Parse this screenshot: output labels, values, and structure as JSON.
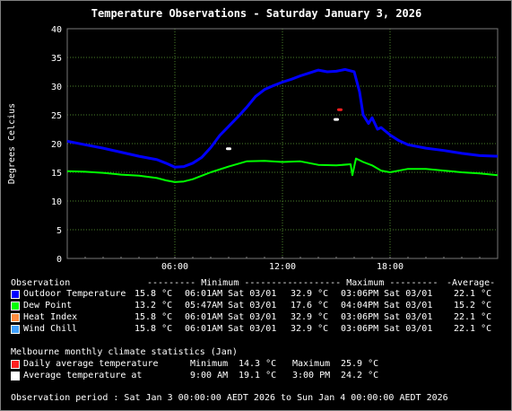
{
  "title": "Temperature Observations - Saturday January 3, 2026",
  "chart_data": {
    "type": "line",
    "title": "Temperature Observations - Saturday January 3, 2026",
    "xlabel": "",
    "ylabel": "Degrees Celcius",
    "xlim": [
      "00:00",
      "24:00"
    ],
    "ylim": [
      0,
      40
    ],
    "yticks": [
      0,
      5,
      10,
      15,
      20,
      25,
      30,
      35,
      40
    ],
    "xticks": [
      "06:00",
      "12:00",
      "18:00"
    ],
    "grid": true,
    "series": [
      {
        "name": "Outdoor Temperature",
        "color": "#0000ff",
        "x": [
          0,
          1,
          2,
          3,
          4,
          5,
          5.5,
          6,
          6.5,
          7,
          7.5,
          8,
          8.5,
          9,
          9.5,
          10,
          10.5,
          11,
          11.5,
          12,
          12.5,
          13,
          13.5,
          14,
          14.5,
          15,
          15.5,
          16.0,
          16.3,
          16.5,
          16.8,
          17,
          17.3,
          17.5,
          18,
          18.5,
          19,
          20,
          21,
          22,
          23,
          24
        ],
        "values": [
          20.4,
          19.8,
          19.2,
          18.5,
          17.8,
          17.2,
          16.6,
          15.9,
          16.0,
          16.6,
          17.6,
          19.3,
          21.4,
          23.0,
          24.6,
          26.3,
          28.2,
          29.4,
          30.1,
          30.7,
          31.2,
          31.8,
          32.3,
          32.8,
          32.5,
          32.6,
          32.9,
          32.5,
          29.0,
          25.0,
          23.5,
          24.5,
          22.5,
          22.8,
          21.5,
          20.5,
          19.8,
          19.2,
          18.8,
          18.3,
          17.9,
          17.8
        ]
      },
      {
        "name": "Dew Point",
        "color": "#00ff00",
        "x": [
          0,
          1,
          2,
          3,
          4,
          5,
          5.5,
          6,
          6.5,
          7,
          7.5,
          8,
          9,
          10,
          11,
          12,
          13,
          14,
          15,
          15.8,
          15.9,
          16.1,
          16.5,
          17,
          17.5,
          18,
          19,
          20,
          21,
          22,
          23,
          24
        ],
        "values": [
          15.2,
          15.1,
          14.9,
          14.6,
          14.4,
          14.0,
          13.6,
          13.3,
          13.4,
          13.8,
          14.4,
          15.0,
          16.0,
          16.9,
          17.0,
          16.8,
          16.9,
          16.3,
          16.2,
          16.4,
          14.5,
          17.4,
          16.8,
          16.2,
          15.3,
          15.0,
          15.6,
          15.6,
          15.3,
          15.0,
          14.8,
          14.5
        ]
      }
    ],
    "annotations": [
      {
        "name": "Daily average temperature",
        "color": "#ff2020",
        "x": 15.2,
        "y": 25.9
      },
      {
        "name": "Average temperature at",
        "color": "#ffffff",
        "x": 15.0,
        "y": 24.2
      },
      {
        "name": "Average temperature at",
        "color": "#ffffff",
        "x": 9.0,
        "y": 19.1
      }
    ]
  },
  "table": {
    "header": {
      "observation": "Observation",
      "minimum": "--------- Minimum ---------",
      "maximum": "--------- Maximum ---------",
      "average": "-Average-"
    },
    "rows": [
      {
        "label": "Outdoor Temperature",
        "color": "#0000ff",
        "min": "15.8 °C",
        "min_time": "06:01AM Sat 03/01",
        "max": "32.9 °C",
        "max_time": "03:06PM Sat 03/01",
        "avg": "22.1 °C"
      },
      {
        "label": "Dew Point",
        "color": "#00ff00",
        "min": "13.2 °C",
        "min_time": "05:47AM Sat 03/01",
        "max": "17.6 °C",
        "max_time": "04:04PM Sat 03/01",
        "avg": "15.2 °C"
      },
      {
        "label": "Heat Index",
        "color": "#ff8c40",
        "min": "15.8 °C",
        "min_time": "06:01AM Sat 03/01",
        "max": "32.9 °C",
        "max_time": "03:06PM Sat 03/01",
        "avg": "22.1 °C"
      },
      {
        "label": "Wind Chill",
        "color": "#40a0ff",
        "min": "15.8 °C",
        "min_time": "06:01AM Sat 03/01",
        "max": "32.9 °C",
        "max_time": "03:06PM Sat 03/01",
        "avg": "22.1 °C"
      }
    ]
  },
  "climate": {
    "heading": "Melbourne monthly climate statistics (Jan)",
    "rows": [
      {
        "label": "Daily average temperature",
        "color": "#ff2020",
        "left_label": "Minimum",
        "left_value": "14.3 °C",
        "right_label": "Maximum",
        "right_value": "25.9 °C"
      },
      {
        "label": "Average temperature at",
        "color": "#ffffff",
        "left_label": "9:00 AM",
        "left_value": "19.1 °C",
        "right_label": "3:00 PM",
        "right_value": "24.2 °C"
      }
    ]
  },
  "footer": "Observation period : Sat Jan 3 00:00:00 AEDT 2026 to Sun Jan 4 00:00:00 AEDT 2026"
}
